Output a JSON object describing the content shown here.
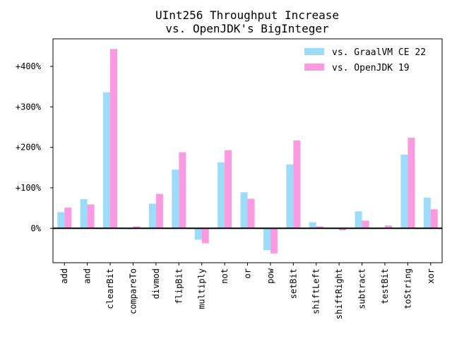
{
  "chart_data": {
    "type": "bar",
    "title": "UInt256 Throughput Increase",
    "subtitle": "vs. OpenJDK's BigInteger",
    "xlabel": "",
    "ylabel": "",
    "categories": [
      "add",
      "and",
      "clearBit",
      "compareTo",
      "divmod",
      "flipBit",
      "multiply",
      "not",
      "or",
      "pow",
      "setBit",
      "shiftLeft",
      "shiftRight",
      "subtract",
      "testBit",
      "toString",
      "xor"
    ],
    "series": [
      {
        "name": "vs. GraalVM CE 22",
        "color": "#9ddcf8",
        "values": [
          40,
          72,
          336,
          -2,
          61,
          145,
          -28,
          163,
          89,
          -54,
          158,
          15,
          -2,
          42,
          2,
          182,
          76
        ]
      },
      {
        "name": "vs. OpenJDK 19",
        "color": "#fb9ae0",
        "values": [
          51,
          59,
          443,
          5,
          85,
          188,
          -37,
          193,
          73,
          -62,
          217,
          5,
          -5,
          19,
          7,
          224,
          47
        ]
      }
    ],
    "ylim": [
      -85,
      468
    ],
    "yticks": [
      0,
      100,
      200,
      300,
      400
    ],
    "ytick_labels": [
      "0%",
      "+100%",
      "+200%",
      "+300%",
      "+400%"
    ],
    "zero_line": true,
    "grid": false,
    "legend_position": "top-right"
  }
}
